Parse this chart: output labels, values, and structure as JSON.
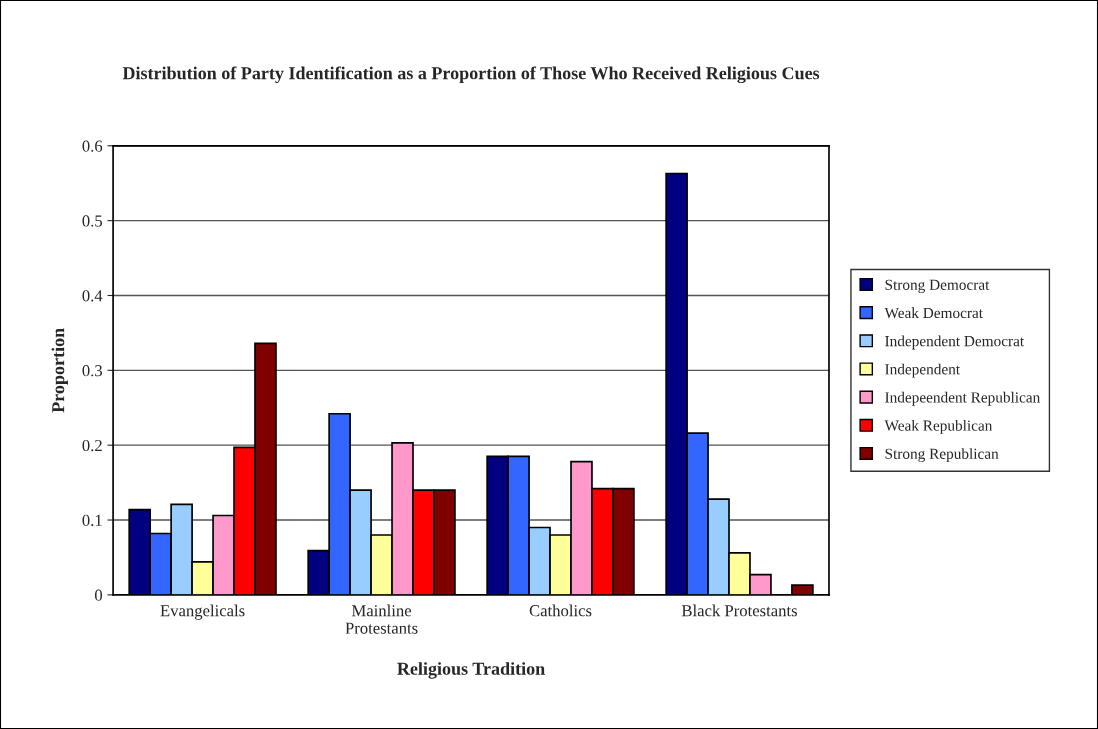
{
  "chart_data": {
    "type": "bar",
    "title": "Distribution of Party Identification as a Proportion of Those Who Received Religious Cues",
    "xlabel": "Religious Tradition",
    "ylabel": "Proportion",
    "categories": [
      "Evangelicals",
      "Mainline\nProtestants",
      "Catholics",
      "Black Protestants"
    ],
    "series": [
      {
        "name": "Strong Democrat",
        "color": "#000080",
        "values": [
          0.114,
          0.059,
          0.185,
          0.563
        ]
      },
      {
        "name": "Weak Democrat",
        "color": "#3366ff",
        "values": [
          0.082,
          0.242,
          0.185,
          0.216
        ]
      },
      {
        "name": "Independent Democrat",
        "color": "#99ccff",
        "values": [
          0.121,
          0.14,
          0.09,
          0.128
        ]
      },
      {
        "name": "Independent",
        "color": "#ffff99",
        "values": [
          0.044,
          0.08,
          0.08,
          0.056
        ]
      },
      {
        "name": "Indepeendent Republican",
        "color": "#ff99cc",
        "values": [
          0.106,
          0.203,
          0.178,
          0.027
        ]
      },
      {
        "name": "Weak Republican",
        "color": "#ff0000",
        "values": [
          0.197,
          0.14,
          0.142,
          null
        ]
      },
      {
        "name": "Strong Republican",
        "color": "#800000",
        "values": [
          0.336,
          0.14,
          0.142,
          0.013
        ]
      }
    ],
    "ylim": [
      0,
      0.6
    ],
    "yticks": [
      0,
      0.1,
      0.2,
      0.3,
      0.4,
      0.5,
      0.6
    ],
    "grid": "y",
    "legend": "right"
  }
}
